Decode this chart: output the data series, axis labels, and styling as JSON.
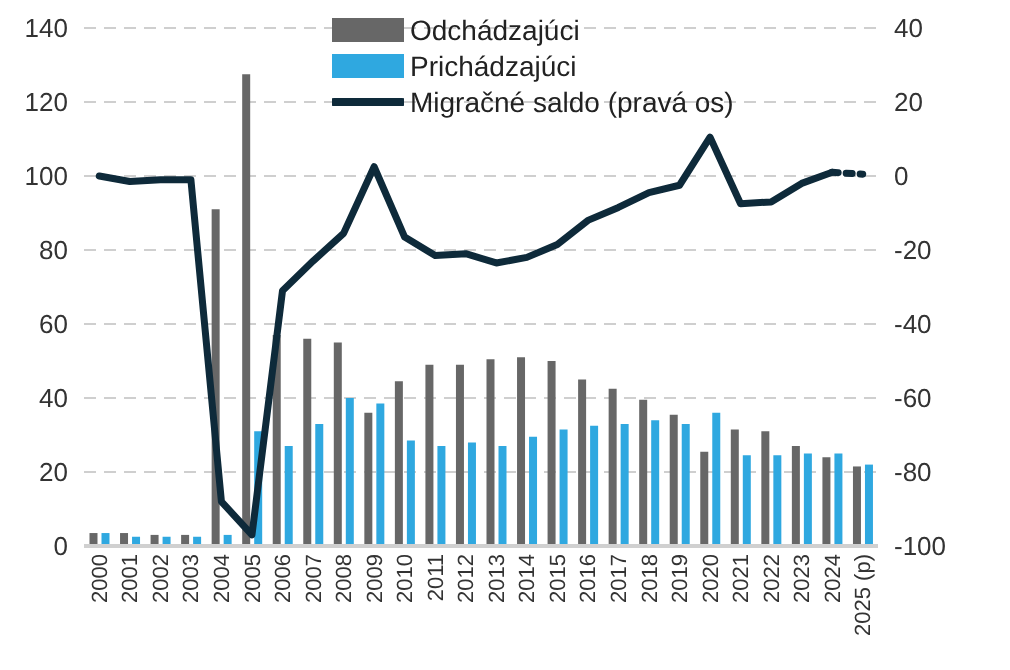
{
  "chart_data": {
    "type": "bar",
    "categories": [
      "2000",
      "2001",
      "2002",
      "2003",
      "2004",
      "2005",
      "2006",
      "2007",
      "2008",
      "2009",
      "2010",
      "2011",
      "2012",
      "2013",
      "2014",
      "2015",
      "2016",
      "2017",
      "2018",
      "2019",
      "2020",
      "2021",
      "2022",
      "2023",
      "2024",
      "2025 (p)"
    ],
    "series": [
      {
        "name": "Odchádzajúci",
        "color": "#676767",
        "values": [
          3.5,
          3.5,
          3,
          3,
          91,
          127.5,
          57,
          56,
          55,
          36,
          44.5,
          49,
          49,
          50.5,
          51,
          50,
          45,
          42.5,
          39.5,
          35.5,
          25.5,
          31.5,
          31,
          27,
          24,
          21.5
        ]
      },
      {
        "name": "Prichádzajúci",
        "color": "#2fa8e0",
        "values": [
          3.5,
          2.5,
          2.5,
          2.5,
          3,
          31,
          27,
          33,
          40,
          38.5,
          28.5,
          27,
          28,
          27,
          29.5,
          31.5,
          32.5,
          33,
          34,
          33,
          36,
          24.5,
          24.5,
          25,
          25,
          22
        ]
      },
      {
        "name": "Migračné saldo (pravá os)",
        "type": "line",
        "axis": "y2",
        "color": "#0e2a3a",
        "line_style": "solid",
        "values": [
          0,
          -1.5,
          -1,
          -1,
          -88,
          -97,
          -31,
          -23,
          -15.5,
          2.5,
          -16.5,
          -21.5,
          -21,
          -23.5,
          -22,
          -18.5,
          -12,
          -8.5,
          -4.5,
          -2.5,
          10.5,
          -7.5,
          -7,
          -2,
          1,
          null
        ]
      },
      {
        "type": "line",
        "axis": "y2",
        "color": "#0e2a3a",
        "line_style": "dotted",
        "values": [
          null,
          null,
          null,
          null,
          null,
          null,
          null,
          null,
          null,
          null,
          null,
          null,
          null,
          null,
          null,
          null,
          null,
          null,
          null,
          null,
          null,
          null,
          null,
          null,
          1,
          0.5
        ]
      }
    ],
    "ylim": [
      0,
      140
    ],
    "yticks": [
      0,
      20,
      40,
      60,
      80,
      100,
      120,
      140
    ],
    "y2lim": [
      -100,
      40
    ],
    "y2ticks": [
      -100,
      -80,
      -60,
      -40,
      -20,
      0,
      20,
      40
    ],
    "grid": "y",
    "legend": "top",
    "marker": "none"
  }
}
